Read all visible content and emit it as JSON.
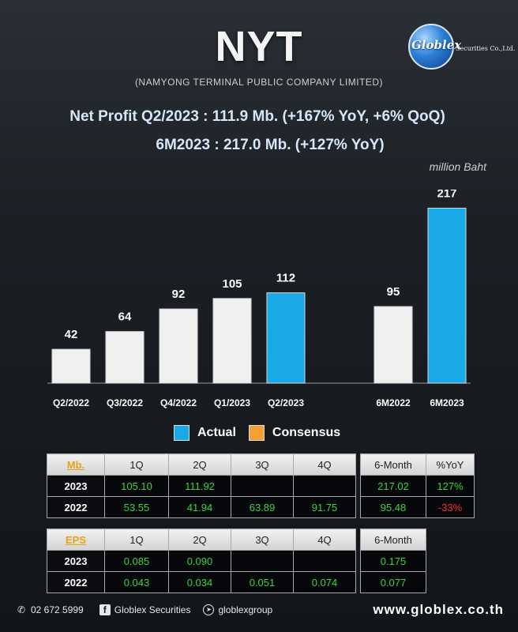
{
  "header": {
    "title": "NYT",
    "subtitle": "(NAMYONG TERMINAL PUBLIC COMPANY LIMITED)",
    "logo_name": "Globlex",
    "logo_suffix": "Securities Co.,Ltd."
  },
  "headline": {
    "line1": "Net Profit  Q2/2023 : 111.9 Mb. (+167% YoY, +6% QoQ)",
    "line2": "6M2023 : 217.0 Mb. (+127% YoY)",
    "unit": "million Baht"
  },
  "chart_data": {
    "type": "bar",
    "categories": [
      "Q2/2022",
      "Q3/2022",
      "Q4/2022",
      "Q1/2023",
      "Q2/2023",
      "",
      "6M2022",
      "6M2023"
    ],
    "values": [
      42,
      64,
      92,
      105,
      112,
      null,
      95,
      217
    ],
    "data_labels": [
      "42",
      "64",
      "92",
      "105",
      "112",
      "",
      "95",
      "217"
    ],
    "highlight": [
      false,
      false,
      false,
      false,
      true,
      false,
      false,
      true
    ],
    "colors": {
      "actual": "#1aa9e8",
      "base": "#f0f0f0",
      "consensus": "#f5a033"
    },
    "ylim": [
      0,
      240
    ],
    "legend": [
      "Actual",
      "Consensus"
    ],
    "legend_position": "bottom-center"
  },
  "table_mb": {
    "corner": "Mb.",
    "headers": [
      "1Q",
      "2Q",
      "3Q",
      "4Q"
    ],
    "side_headers": [
      "6-Month",
      "%YoY"
    ],
    "rows": [
      {
        "year": "2023",
        "cells": [
          "105.10",
          "111.92",
          "",
          ""
        ],
        "six_month": "217.02",
        "yoy": "127%"
      },
      {
        "year": "2022",
        "cells": [
          "53.55",
          "41.94",
          "63.89",
          "91.75"
        ],
        "six_month": "95.48",
        "yoy": "-33%"
      }
    ]
  },
  "table_eps": {
    "corner": "EPS",
    "headers": [
      "1Q",
      "2Q",
      "3Q",
      "4Q"
    ],
    "side_headers": [
      "6-Month"
    ],
    "rows": [
      {
        "year": "2023",
        "cells": [
          "0.085",
          "0.090",
          "",
          ""
        ],
        "six_month": "0.175"
      },
      {
        "year": "2022",
        "cells": [
          "0.043",
          "0.034",
          "0.051",
          "0.074"
        ],
        "six_month": "0.077"
      }
    ]
  },
  "footer": {
    "phone": "02 672 5999",
    "facebook": "Globlex Securities",
    "telegram": "globlexgroup",
    "website": "www.globlex.co.th",
    "icons": [
      "phone-icon",
      "facebook-icon",
      "telegram-icon"
    ]
  }
}
